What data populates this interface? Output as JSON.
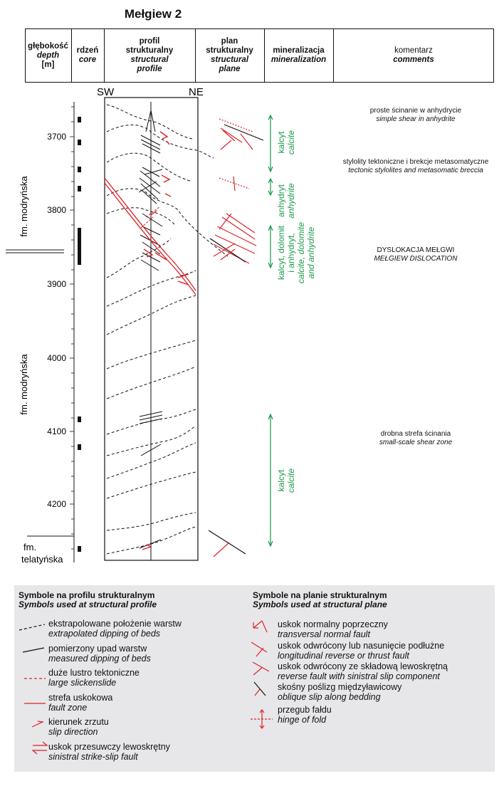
{
  "title": "Mełgiew 2",
  "headers": {
    "depth": [
      "głębokość",
      "depth",
      "[m]"
    ],
    "core": [
      "rdzeń",
      "core"
    ],
    "profile": [
      "profil",
      "strukturalny",
      "structural",
      "profile"
    ],
    "plane": [
      "plan",
      "strukturalny",
      "structural",
      "plane"
    ],
    "mineralization": [
      "mineralizacja",
      "mineralization"
    ],
    "comments": [
      "komentarz",
      "comments"
    ]
  },
  "orientation": {
    "left": "SW",
    "right": "NE"
  },
  "depth_ticks": [
    "3700",
    "3800",
    "3900",
    "4000",
    "4100",
    "4200"
  ],
  "formations": {
    "upper": "fm. modryńska",
    "lower": "fm. modryńska",
    "bottom_line1": "fm.",
    "bottom_line2": "telatyńska"
  },
  "mineralization": [
    {
      "pl": "kalcyt",
      "en": "calcite"
    },
    {
      "pl": "anhydryt",
      "en": "anhydrite"
    },
    {
      "pl1": "kalcyt, dolomit",
      "pl2": "i anhydryt,",
      "en1": "calcite, dolomite",
      "en2": "and anhydrite"
    },
    {
      "pl": "kalcyt",
      "en": "calcite"
    }
  ],
  "comments": [
    {
      "pl": "proste ścinanie w anhydrycie",
      "en": "simple shear in anhydrite"
    },
    {
      "pl": "stylolity tektoniczne i brekcje metasomatyczne",
      "en": "tectonic stylolites and metasomatic breccia"
    },
    {
      "pl": "DYSLOKACJA MEŁGWI",
      "en": "MEŁGIEW DISLOCATION"
    },
    {
      "pl": "drobna strefa ścinania",
      "en": "small-scale shear zone"
    }
  ],
  "legend": {
    "profile_heading_pl": "Symbole na profilu strukturalnym",
    "profile_heading_en": "Symbols used at structural profile",
    "profile_items": [
      {
        "pl": "ekstrapolowane położenie warstw",
        "en": "extrapolated dipping of beds"
      },
      {
        "pl": "pomierzony upad warstw",
        "en": "measured dipping of beds"
      },
      {
        "pl": "duże lustro tektoniczne",
        "en": "large slickenslide"
      },
      {
        "pl": "strefa uskokowa",
        "en": "fault zone"
      },
      {
        "pl": "kierunek zrzutu",
        "en": "slip direction"
      },
      {
        "pl": "uskok przesuwczy lewoskrętny",
        "en": "sinistral strike-slip fault"
      }
    ],
    "plane_heading_pl": "Symbole na planie strukturalnym",
    "plane_heading_en": "Symbols used at structural plane",
    "plane_items": [
      {
        "pl": "uskok normalny poprzeczny",
        "en": "transversal normal fault"
      },
      {
        "pl": "uskok odwrócony lub nasunięcie podłużne",
        "en": "longitudinal reverse or thrust fault"
      },
      {
        "pl": "uskok odwrócony ze składową lewoskrętną",
        "en": "reverse fault with sinistral slip component"
      },
      {
        "pl": "skośny poślizg międzyławicowy",
        "en": "oblique slip along bedding"
      },
      {
        "pl": "przegub fałdu",
        "en": "hinge of fold"
      }
    ]
  }
}
